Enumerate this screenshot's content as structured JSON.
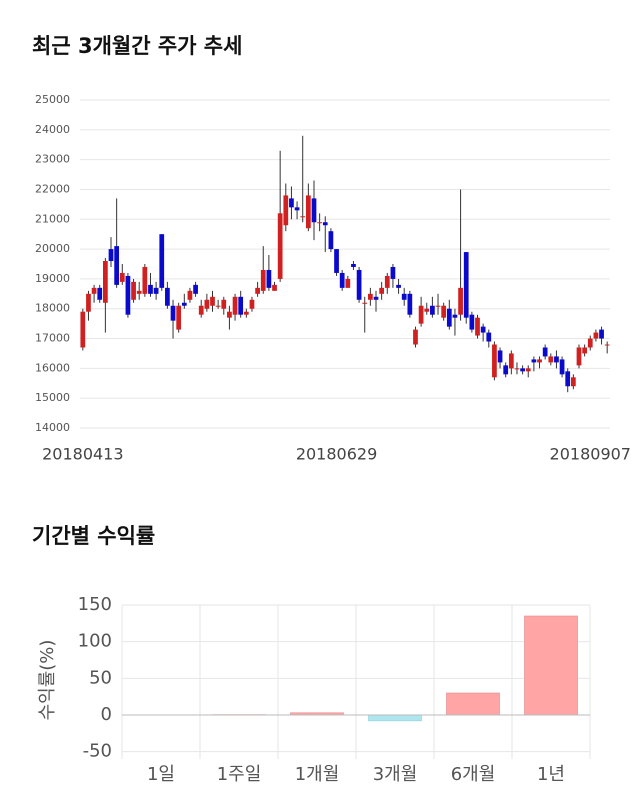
{
  "chart_data": [
    {
      "type": "candlestick",
      "title": "최근 3개월간 주가 추세",
      "categories": [
        "20180413",
        null,
        null,
        null,
        null,
        null,
        null,
        null,
        null,
        null,
        null,
        null,
        null,
        null,
        null,
        null,
        null,
        null,
        null,
        null,
        null,
        null,
        null,
        null,
        null,
        null,
        null,
        null,
        null,
        null,
        null,
        null,
        null,
        null,
        null,
        null,
        null,
        null,
        null,
        null,
        null,
        null,
        null,
        null,
        null,
        "20180629",
        null,
        null,
        null,
        null,
        null,
        null,
        null,
        null,
        null,
        null,
        null,
        null,
        null,
        null,
        null,
        null,
        null,
        null,
        null,
        null,
        null,
        null,
        null,
        null,
        null,
        null,
        null,
        null,
        null,
        null,
        null,
        null,
        null,
        null,
        null,
        null,
        null,
        null,
        null,
        null,
        null,
        null,
        null,
        null,
        "20180907",
        null,
        null,
        null
      ],
      "open": [
        16700,
        17900,
        18500,
        18700,
        18200,
        20000,
        20100,
        18900,
        19100,
        18300,
        18500,
        18500,
        18800,
        18700,
        20500,
        18700,
        18100,
        17300,
        18200,
        18300,
        18800,
        17800,
        18000,
        18100,
        18100,
        18000,
        17700,
        17800,
        18400,
        17800,
        18000,
        18500,
        18600,
        19300,
        18600,
        19000,
        20800,
        21700,
        21400,
        21100,
        20700,
        21700,
        20900,
        20900,
        20600,
        20000,
        19200,
        18700,
        19500,
        19300,
        18200,
        18300,
        18400,
        18500,
        18700,
        19400,
        18800,
        18500,
        18500,
        16800,
        17500,
        17900,
        18100,
        18100,
        17700,
        18000,
        17800,
        17800,
        19900,
        17800,
        17100,
        17400,
        17200,
        15700,
        16600,
        16100,
        16000,
        16000,
        16000,
        15900,
        16300,
        16200,
        16700,
        16200,
        16400,
        16300,
        15900,
        15400,
        16100,
        16500,
        16700,
        17000,
        17300,
        16800
      ],
      "high": [
        18000,
        18600,
        18800,
        18800,
        19700,
        20400,
        21700,
        19500,
        19200,
        19000,
        18900,
        19500,
        19200,
        18900,
        20500,
        18900,
        18300,
        18200,
        18500,
        18700,
        18900,
        18300,
        18500,
        18600,
        18300,
        18400,
        18100,
        18500,
        18600,
        18000,
        18400,
        18900,
        20100,
        19800,
        18900,
        23300,
        22200,
        22100,
        21600,
        23800,
        22200,
        22300,
        21200,
        21100,
        20700,
        20000,
        19300,
        19100,
        19600,
        19400,
        18400,
        18700,
        18600,
        18900,
        19200,
        19500,
        19000,
        18700,
        18600,
        17400,
        18400,
        18200,
        18400,
        18500,
        18200,
        18300,
        18000,
        22000,
        19900,
        17900,
        17800,
        17500,
        17300,
        16900,
        16700,
        16200,
        16600,
        16200,
        16100,
        16100,
        16400,
        16400,
        16800,
        16500,
        16600,
        16400,
        16000,
        15800,
        16800,
        16800,
        17100,
        17300,
        17400,
        16900
      ],
      "low": [
        16600,
        17600,
        18200,
        18200,
        17200,
        19400,
        18700,
        18800,
        17700,
        18200,
        18300,
        18400,
        18400,
        18300,
        18600,
        18000,
        17000,
        17200,
        18000,
        18200,
        18400,
        17700,
        17900,
        17900,
        18000,
        17800,
        17300,
        17600,
        17700,
        17700,
        17900,
        18400,
        18500,
        18600,
        18600,
        18900,
        20600,
        21000,
        21000,
        20900,
        20600,
        20300,
        20600,
        19900,
        19900,
        19100,
        18600,
        18700,
        19300,
        18200,
        17200,
        18100,
        17900,
        18300,
        18500,
        18700,
        18500,
        18100,
        17700,
        16700,
        17400,
        17800,
        17700,
        17800,
        17600,
        17300,
        17100,
        17600,
        17500,
        17200,
        17000,
        16900,
        16700,
        15600,
        16000,
        15700,
        15800,
        15800,
        15800,
        15700,
        15900,
        16000,
        16300,
        16100,
        16000,
        15700,
        15200,
        15300,
        16000,
        16400,
        16600,
        16900,
        16800,
        16500
      ],
      "close": [
        17900,
        18500,
        18700,
        18300,
        19600,
        19600,
        18800,
        19200,
        17800,
        18900,
        18600,
        19400,
        18500,
        18500,
        18700,
        18100,
        17600,
        18100,
        18100,
        18600,
        18500,
        18100,
        18300,
        18400,
        18100,
        18300,
        17900,
        18400,
        17800,
        17900,
        18300,
        18700,
        19300,
        18700,
        18800,
        21200,
        21800,
        21400,
        21300,
        21100,
        21800,
        20900,
        20900,
        20800,
        20000,
        19200,
        18700,
        19000,
        19400,
        18300,
        18200,
        18500,
        18300,
        18700,
        19100,
        19000,
        18700,
        18300,
        17800,
        17300,
        18100,
        18000,
        17800,
        18100,
        18100,
        17400,
        17700,
        18700,
        17700,
        17300,
        17700,
        17200,
        16900,
        16800,
        16200,
        15800,
        16500,
        16000,
        15900,
        16000,
        16200,
        16300,
        16400,
        16400,
        16200,
        15800,
        15400,
        15700,
        16700,
        16700,
        17000,
        17200,
        17000,
        16800
      ],
      "up_color": "#d0201f",
      "down_color": "#0a0acc",
      "ylim": [
        14000,
        25000
      ],
      "yticks": [
        14000,
        15000,
        16000,
        17000,
        18000,
        19000,
        20000,
        21000,
        22000,
        23000,
        24000,
        25000
      ],
      "grid": true
    },
    {
      "type": "bar",
      "title": "기간별 수익률",
      "ylabel": "수익률(%)",
      "categories": [
        "1일",
        "1주일",
        "1개월",
        "3개월",
        "6개월",
        "1년"
      ],
      "values": [
        0,
        0.5,
        3,
        -8,
        30,
        135
      ],
      "positive_color": "#ffa5a5",
      "negative_color": "#aee6ef",
      "ylim": [
        -60,
        150
      ],
      "yticks": [
        -50,
        0,
        50,
        100,
        150
      ],
      "grid": true
    }
  ]
}
